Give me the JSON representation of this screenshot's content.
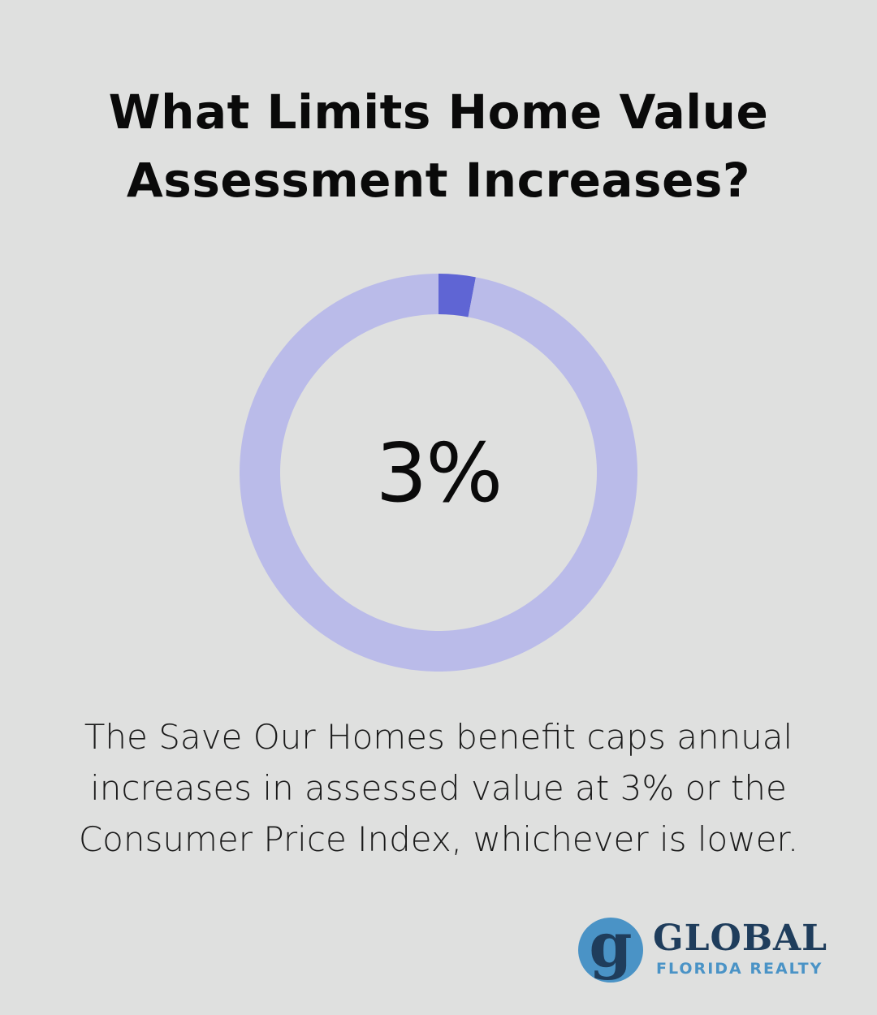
{
  "title": {
    "line1": "What Limits Home Value",
    "line2": "Assessment Increases?"
  },
  "chart_data": {
    "type": "pie",
    "variant": "donut",
    "center_label": "3%",
    "slices": [
      {
        "label": "",
        "value": 3,
        "color": "#5f65d4"
      },
      {
        "label": "",
        "value": 97,
        "color": "#babbe9"
      }
    ]
  },
  "caption": {
    "line1": "The Save Our Homes benefit caps annual",
    "line2": "increases in assessed value at 3% or the",
    "line3": "Consumer Price Index, whichever is lower."
  },
  "logo": {
    "mark_letter": "g",
    "name": "GLOBAL",
    "sub": "FLORIDA REALTY",
    "colors": {
      "dark": "#1f3d5c",
      "light": "#4a93c6"
    }
  },
  "colors": {
    "background": "#dfe0df",
    "text": "#0a0a0a"
  }
}
